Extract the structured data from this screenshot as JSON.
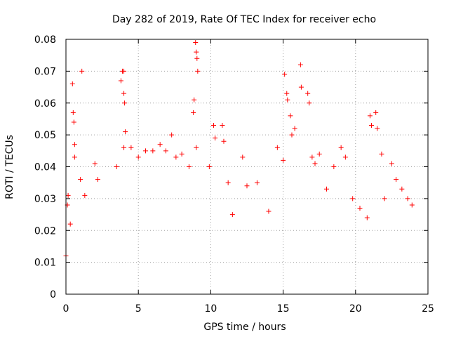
{
  "chart_data": {
    "type": "scatter",
    "title": "Day 282 of 2019, Rate Of TEC Index for receiver echo",
    "xlabel": "GPS time / hours",
    "ylabel": "ROTI / TECUs",
    "xlim": [
      0,
      25
    ],
    "ylim": [
      0,
      0.08
    ],
    "x_ticks": [
      0,
      5,
      10,
      15,
      20,
      25
    ],
    "x_tick_labels": [
      "0",
      "5",
      "10",
      "15",
      "20",
      "25"
    ],
    "y_ticks": [
      0,
      0.01,
      0.02,
      0.03,
      0.04,
      0.05,
      0.06,
      0.07,
      0.08
    ],
    "y_tick_labels": [
      "0",
      "0.01",
      "0.02",
      "0.03",
      "0.04",
      "0.05",
      "0.06",
      "0.07",
      "0.08"
    ],
    "grid": true,
    "marker": "+",
    "color": "#ff0000",
    "series": [
      {
        "values": [
          [
            0.0,
            0.012
          ],
          [
            0.1,
            0.028
          ],
          [
            0.15,
            0.031
          ],
          [
            0.3,
            0.022
          ],
          [
            0.45,
            0.066
          ],
          [
            0.5,
            0.057
          ],
          [
            0.55,
            0.054
          ],
          [
            0.6,
            0.047
          ],
          [
            0.6,
            0.043
          ],
          [
            1.1,
            0.07
          ],
          [
            1.0,
            0.036
          ],
          [
            1.3,
            0.031
          ],
          [
            2.0,
            0.041
          ],
          [
            2.2,
            0.036
          ],
          [
            3.5,
            0.04
          ],
          [
            3.8,
            0.067
          ],
          [
            3.9,
            0.07
          ],
          [
            4.0,
            0.07
          ],
          [
            4.0,
            0.063
          ],
          [
            4.05,
            0.06
          ],
          [
            4.1,
            0.051
          ],
          [
            4.0,
            0.046
          ],
          [
            4.5,
            0.046
          ],
          [
            5.0,
            0.043
          ],
          [
            5.5,
            0.045
          ],
          [
            6.0,
            0.045
          ],
          [
            6.5,
            0.047
          ],
          [
            6.9,
            0.045
          ],
          [
            7.3,
            0.05
          ],
          [
            7.6,
            0.043
          ],
          [
            8.0,
            0.044
          ],
          [
            8.5,
            0.04
          ],
          [
            8.8,
            0.057
          ],
          [
            8.85,
            0.061
          ],
          [
            8.95,
            0.079
          ],
          [
            9.0,
            0.076
          ],
          [
            9.05,
            0.074
          ],
          [
            9.1,
            0.07
          ],
          [
            9.0,
            0.046
          ],
          [
            9.9,
            0.04
          ],
          [
            10.2,
            0.053
          ],
          [
            10.3,
            0.049
          ],
          [
            10.8,
            0.053
          ],
          [
            10.9,
            0.048
          ],
          [
            11.2,
            0.035
          ],
          [
            11.5,
            0.025
          ],
          [
            12.2,
            0.043
          ],
          [
            12.5,
            0.034
          ],
          [
            13.2,
            0.035
          ],
          [
            14.0,
            0.026
          ],
          [
            14.6,
            0.046
          ],
          [
            15.0,
            0.042
          ],
          [
            15.1,
            0.069
          ],
          [
            15.25,
            0.063
          ],
          [
            15.3,
            0.061
          ],
          [
            15.5,
            0.056
          ],
          [
            15.6,
            0.05
          ],
          [
            15.8,
            0.052
          ],
          [
            16.2,
            0.072
          ],
          [
            16.25,
            0.065
          ],
          [
            16.7,
            0.063
          ],
          [
            16.8,
            0.06
          ],
          [
            17.0,
            0.043
          ],
          [
            17.2,
            0.041
          ],
          [
            17.5,
            0.044
          ],
          [
            18.0,
            0.033
          ],
          [
            18.5,
            0.04
          ],
          [
            19.0,
            0.046
          ],
          [
            19.3,
            0.043
          ],
          [
            19.8,
            0.03
          ],
          [
            20.3,
            0.027
          ],
          [
            20.8,
            0.024
          ],
          [
            21.0,
            0.056
          ],
          [
            21.1,
            0.053
          ],
          [
            21.4,
            0.057
          ],
          [
            21.5,
            0.052
          ],
          [
            21.8,
            0.044
          ],
          [
            22.0,
            0.03
          ],
          [
            22.5,
            0.041
          ],
          [
            22.8,
            0.036
          ],
          [
            23.2,
            0.033
          ],
          [
            23.6,
            0.03
          ],
          [
            23.9,
            0.028
          ]
        ]
      }
    ]
  }
}
